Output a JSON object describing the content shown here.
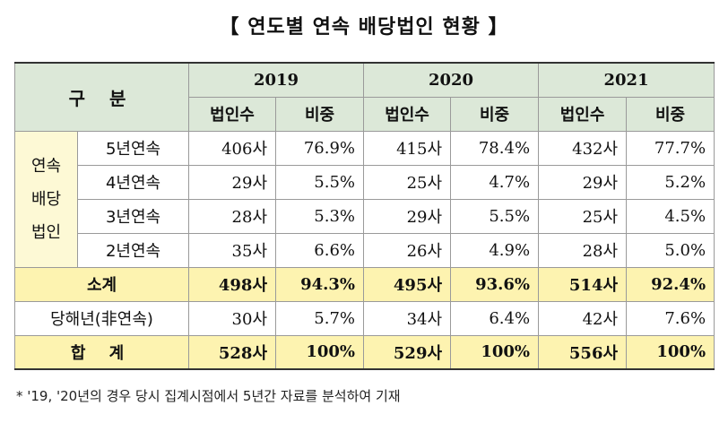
{
  "title": "【 연도별 연속 배당법인 현황 】",
  "header": {
    "category": "구 분",
    "years": [
      "2019",
      "2020",
      "2021"
    ],
    "col_count": "법인수",
    "col_share": "비중"
  },
  "group_label": [
    "연속",
    "배당",
    "법인"
  ],
  "rows": [
    {
      "label": "5년연속",
      "values": [
        "406사",
        "76.9%",
        "415사",
        "78.4%",
        "432사",
        "77.7%"
      ]
    },
    {
      "label": "4년연속",
      "values": [
        "29사",
        "5.5%",
        "25사",
        "4.7%",
        "29사",
        "5.2%"
      ]
    },
    {
      "label": "3년연속",
      "values": [
        "28사",
        "5.3%",
        "29사",
        "5.5%",
        "25사",
        "4.5%"
      ]
    },
    {
      "label": "2년연속",
      "values": [
        "35사",
        "6.6%",
        "26사",
        "4.9%",
        "28사",
        "5.0%"
      ]
    }
  ],
  "subtotal": {
    "label": "소계",
    "values": [
      "498사",
      "94.3%",
      "495사",
      "93.6%",
      "514사",
      "92.4%"
    ]
  },
  "non_consecutive": {
    "label": "당해년(非연속)",
    "values": [
      "30사",
      "5.7%",
      "34사",
      "6.4%",
      "42사",
      "7.6%"
    ]
  },
  "total": {
    "label": "합 계",
    "values": [
      "528사",
      "100%",
      "529사",
      "100%",
      "556사",
      "100%"
    ]
  },
  "footnote": "* '19, '20년의 경우 당시 집계시점에서 5년간 자료를 분석하여 기재",
  "colors": {
    "header_bg": "#dce8d8",
    "label_bg": "#fdf9d5",
    "total_bg": "#fdf3b0"
  }
}
